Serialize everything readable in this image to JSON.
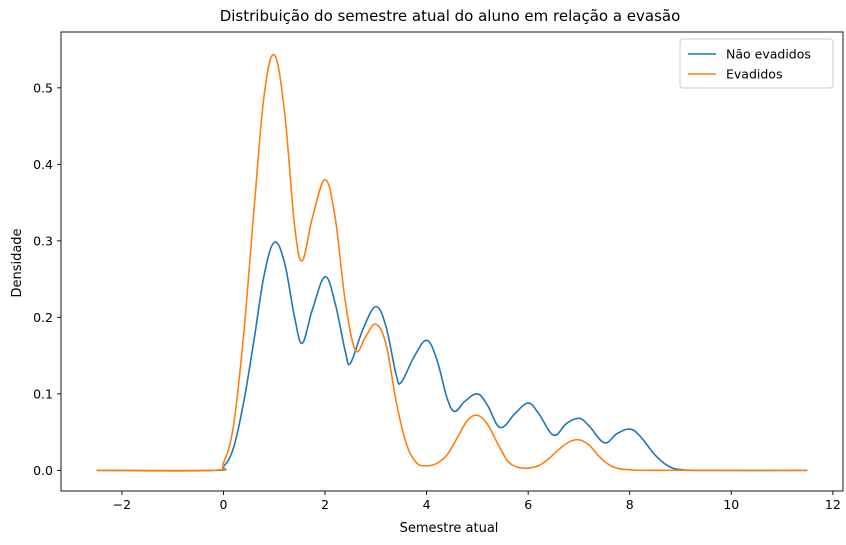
{
  "chart_data": {
    "type": "line",
    "title": "Distribuição do semestre atual do aluno em relação a evasão",
    "xlabel": "Semestre atual",
    "ylabel": "Densidade",
    "xlim": [
      -3.2,
      12.2
    ],
    "ylim": [
      -0.027,
      0.573
    ],
    "xticks": [
      -2,
      0,
      2,
      4,
      6,
      8,
      10,
      12
    ],
    "xtick_labels": [
      "−2",
      "0",
      "2",
      "4",
      "6",
      "8",
      "10",
      "12"
    ],
    "yticks": [
      0.0,
      0.1,
      0.2,
      0.3,
      0.4,
      0.5
    ],
    "ytick_labels": [
      "0.0",
      "0.1",
      "0.2",
      "0.3",
      "0.4",
      "0.5"
    ],
    "grid": false,
    "legend_position": "top-right",
    "x_range": [
      -2.5,
      11.5
    ],
    "series": [
      {
        "name": "Não evadidos",
        "color": "#1f77b4",
        "points": [
          [
            -2.5,
            0.0
          ],
          [
            -0.2,
            0.0
          ],
          [
            0.0,
            0.005
          ],
          [
            0.2,
            0.03
          ],
          [
            0.4,
            0.09
          ],
          [
            0.6,
            0.17
          ],
          [
            0.8,
            0.255
          ],
          [
            1.0,
            0.298
          ],
          [
            1.2,
            0.272
          ],
          [
            1.4,
            0.2
          ],
          [
            1.55,
            0.166
          ],
          [
            1.75,
            0.21
          ],
          [
            2.0,
            0.253
          ],
          [
            2.2,
            0.218
          ],
          [
            2.4,
            0.155
          ],
          [
            2.5,
            0.14
          ],
          [
            2.75,
            0.185
          ],
          [
            3.0,
            0.214
          ],
          [
            3.2,
            0.188
          ],
          [
            3.4,
            0.125
          ],
          [
            3.5,
            0.115
          ],
          [
            3.75,
            0.148
          ],
          [
            4.0,
            0.17
          ],
          [
            4.2,
            0.145
          ],
          [
            4.4,
            0.095
          ],
          [
            4.55,
            0.077
          ],
          [
            4.75,
            0.09
          ],
          [
            5.0,
            0.1
          ],
          [
            5.2,
            0.085
          ],
          [
            5.45,
            0.056
          ],
          [
            5.75,
            0.075
          ],
          [
            6.0,
            0.088
          ],
          [
            6.2,
            0.075
          ],
          [
            6.5,
            0.046
          ],
          [
            6.75,
            0.061
          ],
          [
            7.0,
            0.068
          ],
          [
            7.2,
            0.058
          ],
          [
            7.5,
            0.036
          ],
          [
            7.75,
            0.048
          ],
          [
            8.0,
            0.054
          ],
          [
            8.2,
            0.045
          ],
          [
            8.5,
            0.02
          ],
          [
            8.75,
            0.006
          ],
          [
            9.0,
            0.001
          ],
          [
            9.5,
            0.0
          ],
          [
            11.5,
            0.0
          ]
        ]
      },
      {
        "name": "Evadidos",
        "color": "#ff7f0e",
        "points": [
          [
            -2.5,
            0.0
          ],
          [
            -0.2,
            0.0
          ],
          [
            0.0,
            0.01
          ],
          [
            0.2,
            0.06
          ],
          [
            0.4,
            0.18
          ],
          [
            0.6,
            0.34
          ],
          [
            0.8,
            0.49
          ],
          [
            1.0,
            0.543
          ],
          [
            1.2,
            0.47
          ],
          [
            1.4,
            0.32
          ],
          [
            1.55,
            0.274
          ],
          [
            1.75,
            0.33
          ],
          [
            2.0,
            0.38
          ],
          [
            2.2,
            0.33
          ],
          [
            2.4,
            0.22
          ],
          [
            2.6,
            0.157
          ],
          [
            2.8,
            0.175
          ],
          [
            3.0,
            0.191
          ],
          [
            3.2,
            0.165
          ],
          [
            3.4,
            0.09
          ],
          [
            3.6,
            0.035
          ],
          [
            3.8,
            0.01
          ],
          [
            4.0,
            0.006
          ],
          [
            4.2,
            0.009
          ],
          [
            4.4,
            0.02
          ],
          [
            4.6,
            0.042
          ],
          [
            4.8,
            0.065
          ],
          [
            5.0,
            0.072
          ],
          [
            5.2,
            0.06
          ],
          [
            5.4,
            0.035
          ],
          [
            5.6,
            0.012
          ],
          [
            5.8,
            0.004
          ],
          [
            6.0,
            0.003
          ],
          [
            6.2,
            0.006
          ],
          [
            6.4,
            0.015
          ],
          [
            6.6,
            0.027
          ],
          [
            6.8,
            0.037
          ],
          [
            7.0,
            0.04
          ],
          [
            7.2,
            0.033
          ],
          [
            7.4,
            0.018
          ],
          [
            7.6,
            0.007
          ],
          [
            7.8,
            0.002
          ],
          [
            8.0,
            0.001
          ],
          [
            8.5,
            0.0
          ],
          [
            11.5,
            0.0
          ]
        ]
      }
    ]
  }
}
